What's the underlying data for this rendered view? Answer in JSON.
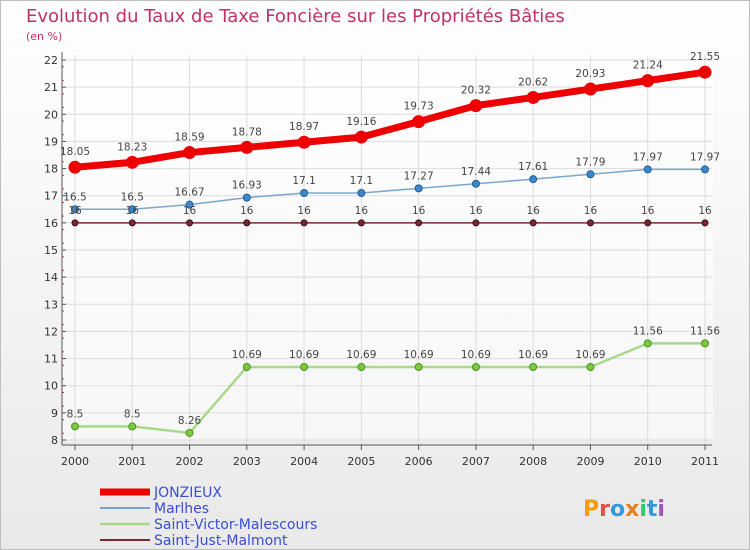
{
  "header": {
    "title": "Evolution du Taux de Taxe Foncière sur les Propriétés Bâties",
    "unit": "(en %)"
  },
  "logo": {
    "text": "Proxiti"
  },
  "chart_data": {
    "type": "line",
    "x": [
      "2000",
      "2001",
      "2002",
      "2003",
      "2004",
      "2005",
      "2006",
      "2007",
      "2008",
      "2009",
      "2010",
      "2011"
    ],
    "ylim": [
      8,
      22
    ],
    "yticks": [
      8,
      9,
      10,
      11,
      12,
      13,
      14,
      15,
      16,
      17,
      18,
      19,
      20,
      21,
      22
    ],
    "grid": true,
    "legend_position": "bottom-left",
    "series": [
      {
        "name": "JONZIEUX",
        "color": "#ee0000",
        "values": [
          18.05,
          18.23,
          18.59,
          18.78,
          18.97,
          19.16,
          19.73,
          20.32,
          20.62,
          20.93,
          21.24,
          21.55
        ],
        "labels": [
          "18.05",
          "18.23",
          "18.59",
          "18.78",
          "18.97",
          "19.16",
          "19.73",
          "20.32",
          "20.62",
          "20.93",
          "21.24",
          "21.55"
        ]
      },
      {
        "name": "Marlhes",
        "color": "#7aa6cf",
        "values": [
          16.5,
          16.5,
          16.67,
          16.93,
          17.1,
          17.1,
          17.27,
          17.44,
          17.61,
          17.79,
          17.97,
          17.97
        ],
        "labels": [
          "16.5",
          "16.5",
          "16.67",
          "16.93",
          "17.1",
          "17.1",
          "17.27",
          "17.44",
          "17.61",
          "17.79",
          "17.97",
          "17.97"
        ]
      },
      {
        "name": "Saint-Victor-Malescours",
        "color": "#a8d98a",
        "values": [
          8.5,
          8.5,
          8.26,
          10.69,
          10.69,
          10.69,
          10.69,
          10.69,
          10.69,
          10.69,
          11.56,
          11.56
        ],
        "labels": [
          "8.5",
          "8.5",
          "8.26",
          "10.69",
          "10.69",
          "10.69",
          "10.69",
          "10.69",
          "10.69",
          "10.69",
          "11.56",
          "11.56"
        ]
      },
      {
        "name": "Saint-Just-Malmont",
        "color": "#7a2a36",
        "values": [
          16,
          16,
          16,
          16,
          16,
          16,
          16,
          16,
          16,
          16,
          16,
          16
        ],
        "labels": [
          "16",
          "16",
          "16",
          "16",
          "16",
          "16",
          "16",
          "16",
          "16",
          "16",
          "16",
          "16"
        ]
      }
    ]
  }
}
